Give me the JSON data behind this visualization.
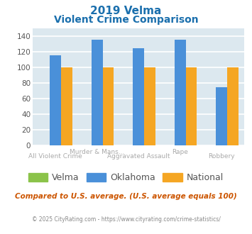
{
  "title_line1": "2019 Velma",
  "title_line2": "Violent Crime Comparison",
  "categories": [
    "All Violent Crime",
    "Murder & Mans...",
    "Aggravated Assault",
    "Rape",
    "Robbery"
  ],
  "velma_values": [
    0,
    0,
    0,
    0,
    0
  ],
  "oklahoma_values": [
    115,
    135,
    124,
    135,
    74
  ],
  "national_values": [
    100,
    100,
    100,
    100,
    100
  ],
  "bar_colors": {
    "velma": "#8bc34a",
    "oklahoma": "#4a90d9",
    "national": "#f5a623"
  },
  "ylim": [
    0,
    150
  ],
  "yticks": [
    0,
    20,
    40,
    60,
    80,
    100,
    120,
    140
  ],
  "plot_bg_color": "#dce8ef",
  "grid_color": "#ffffff",
  "title_color": "#1a6fad",
  "label_color": "#aaaaaa",
  "legend_labels": [
    "Velma",
    "Oklahoma",
    "National"
  ],
  "legend_text_color": "#555555",
  "footer_text": "Compared to U.S. average. (U.S. average equals 100)",
  "copyright_text": "© 2025 CityRating.com - https://www.cityrating.com/crime-statistics/",
  "footer_color": "#cc5500",
  "copyright_color": "#888888"
}
